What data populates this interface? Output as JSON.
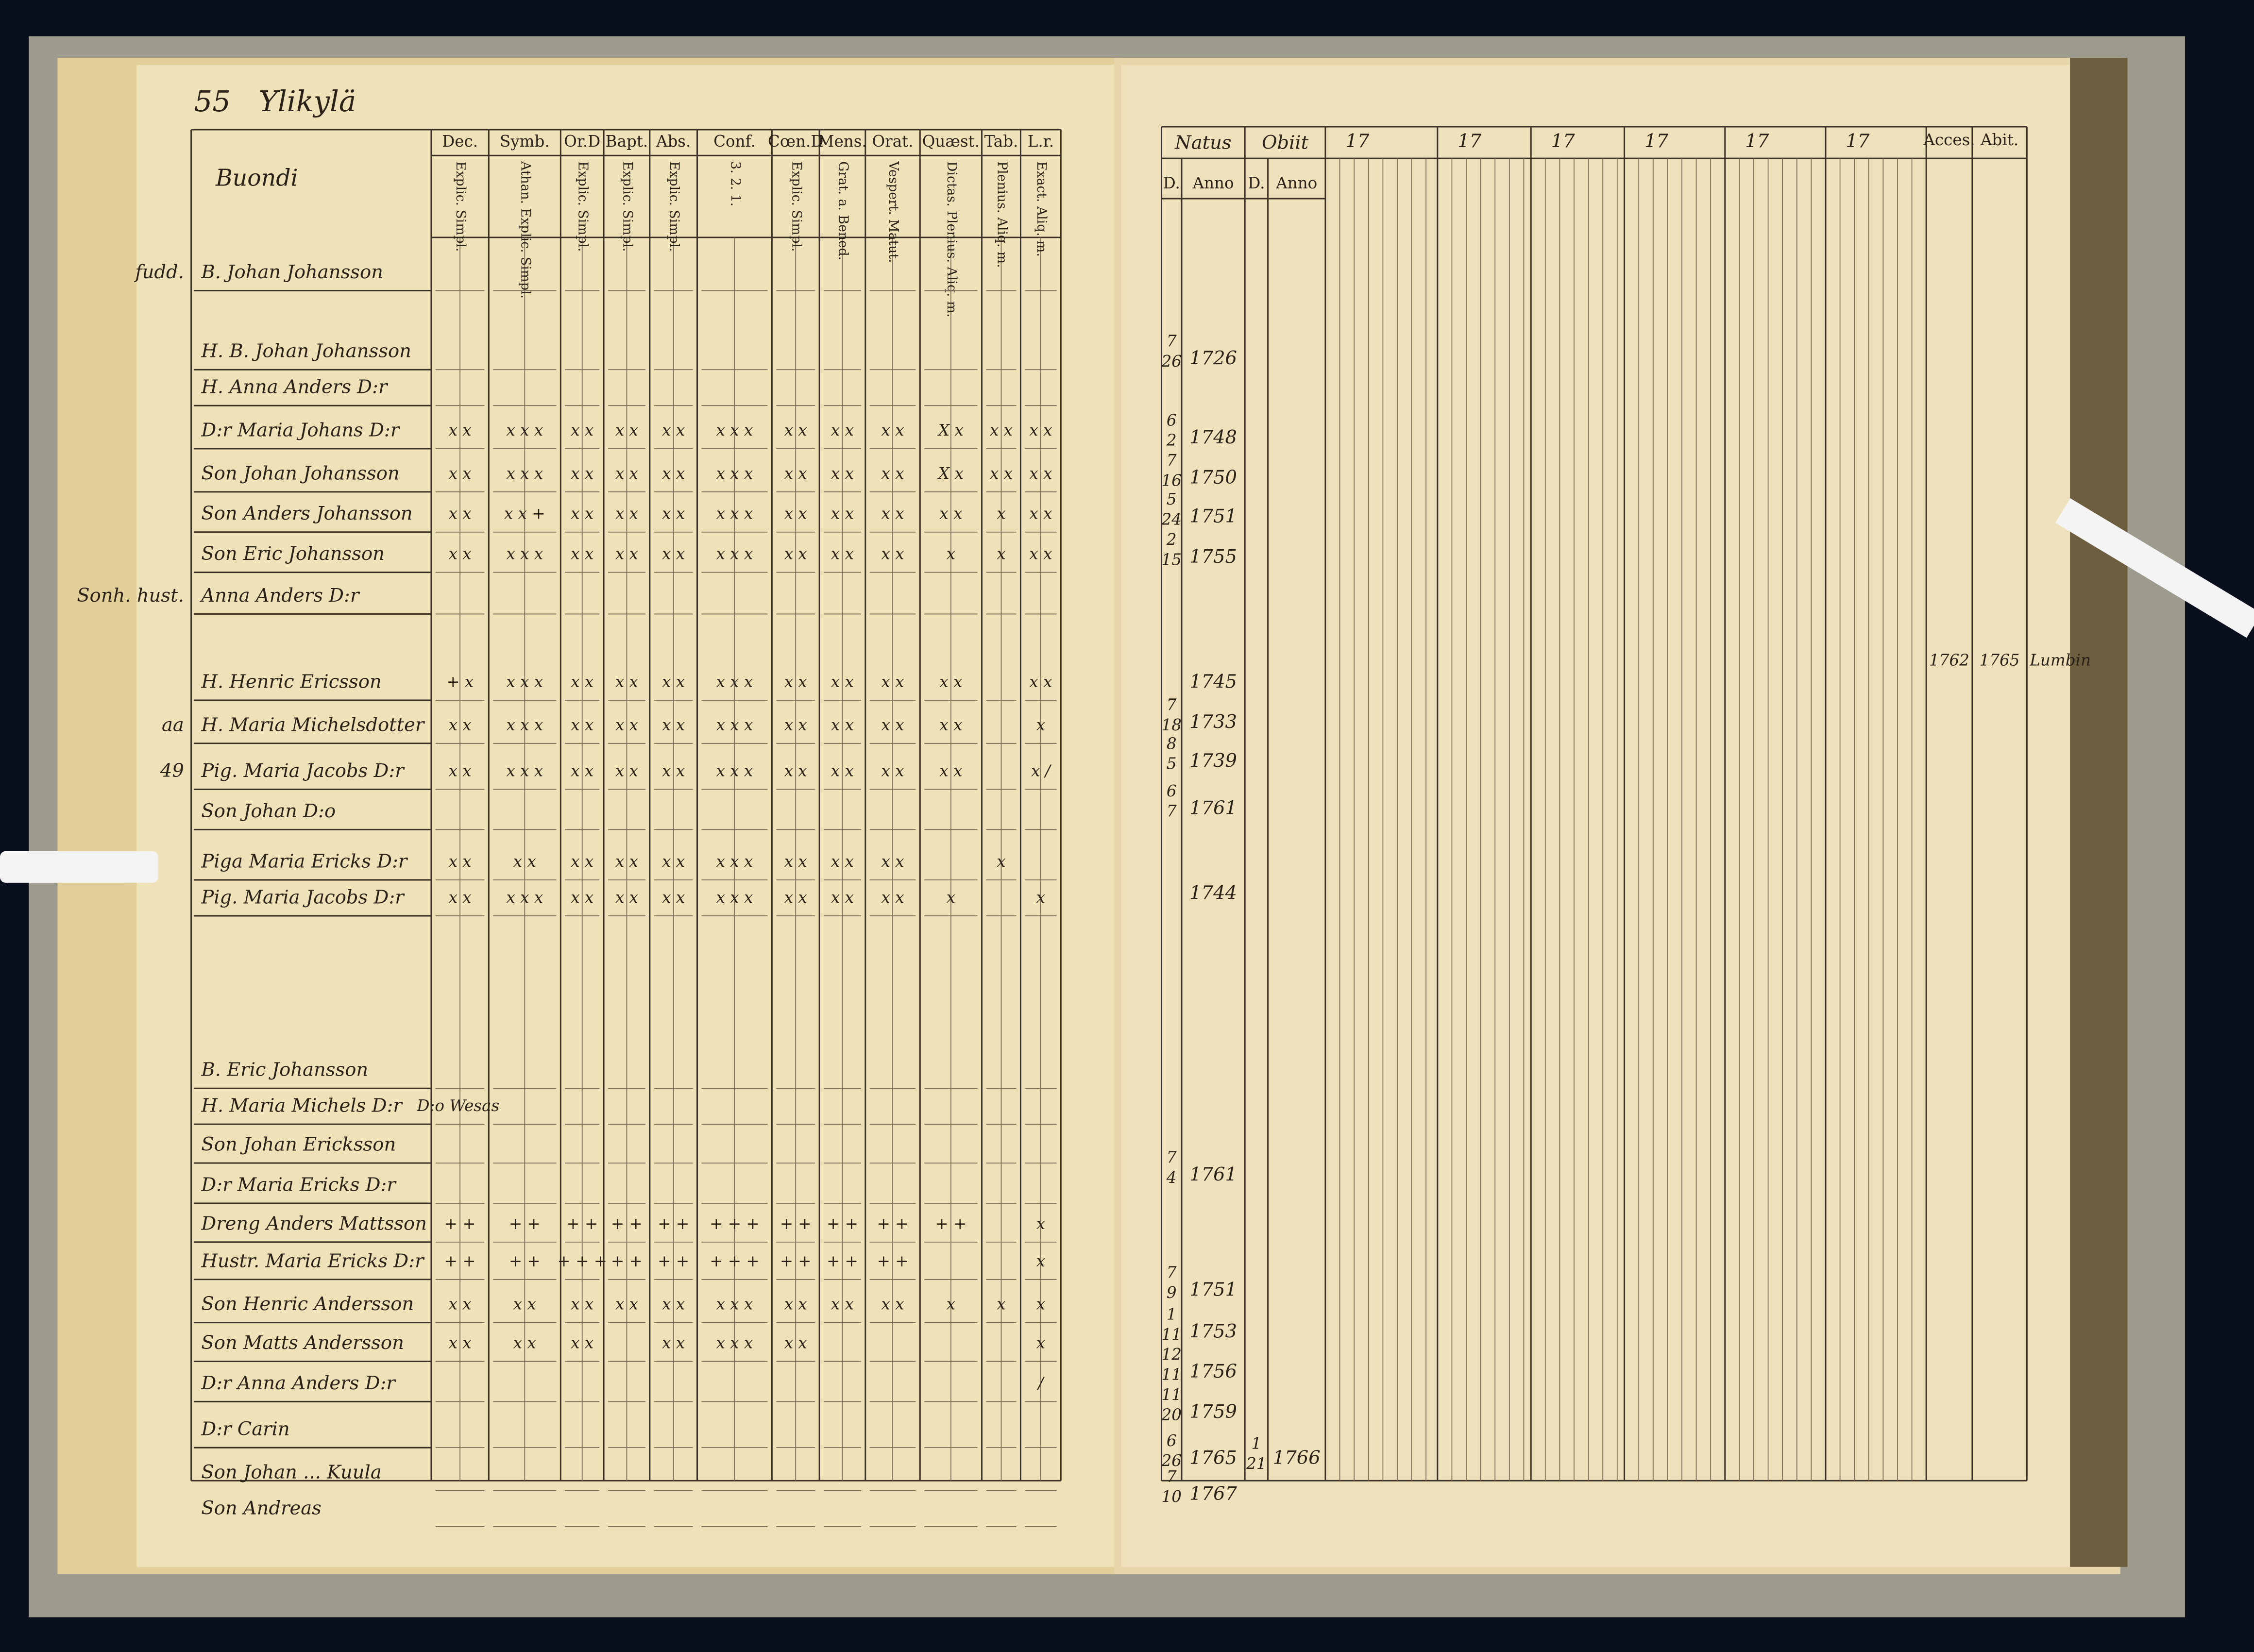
{
  "left_page": {
    "page_number": "55",
    "village": "Ylikylä",
    "section": "Buondi",
    "columns": [
      {
        "header": "Dec.",
        "sub": "Explic. Simpl."
      },
      {
        "header": "Symb.",
        "sub": "Athan. Explic. Simpl."
      },
      {
        "header": "Or.D",
        "sub": "Explic. Simpl."
      },
      {
        "header": "Bapt.",
        "sub": "Explic. Simpl."
      },
      {
        "header": "Abs.",
        "sub": "Explic. Simpl."
      },
      {
        "header": "Conf.",
        "sub": "3. 2. 1."
      },
      {
        "header": "Cœn.D",
        "sub": "Explic. Simpl."
      },
      {
        "header": "Mens.",
        "sub": "Grat. a. Bened."
      },
      {
        "header": "Orat.",
        "sub": "Vespert. Matut."
      },
      {
        "header": "Quæst.",
        "sub": "Dictas. Plenius. Aliq. m."
      },
      {
        "header": "Tab.",
        "sub": "Plenius. Aliq. m."
      },
      {
        "header": "L.r.",
        "sub": "Exact. Aliq. m."
      }
    ],
    "rows": [
      {
        "prefix": "fudd.",
        "name": "B. Johan Johansson"
      },
      {
        "name": "H. B. Johan Johansson"
      },
      {
        "name": "H. Anna Anders D:r"
      },
      {
        "name": "D:r Maria Johans D:r",
        "marks": [
          "x x",
          "x x x",
          "x x",
          "x x",
          "x x",
          "x x x",
          "x x",
          "x x",
          "x x",
          "X x",
          "x x",
          "x x"
        ]
      },
      {
        "name": "Son Johan Johansson",
        "marks": [
          "x x",
          "x x x",
          "x x",
          "x x",
          "x x",
          "x x x",
          "x x",
          "x x",
          "x x",
          "X x",
          "x x",
          "x x"
        ]
      },
      {
        "name": "Son Anders Johansson",
        "marks": [
          "x x",
          "x x +",
          "x x",
          "x x",
          "x x",
          "x x x",
          "x x",
          "x x",
          "x x",
          "x x",
          "x",
          "x x"
        ]
      },
      {
        "name": "Son Eric Johansson",
        "marks": [
          "x x",
          "x x x",
          "x x",
          "x x",
          "x x",
          "x x x",
          "x x",
          "x x",
          "x x",
          "x",
          "x",
          "x x"
        ]
      },
      {
        "prefix": "Sonh. hust.",
        "name": "Anna Anders D:r"
      },
      {
        "name": "H. Henric Ericsson",
        "marks": [
          "+ x",
          "x x x",
          "x x",
          "x x",
          "x x",
          "x x x",
          "x x",
          "x x",
          "x x",
          "x x",
          null,
          "x x"
        ]
      },
      {
        "prefix": "aa",
        "name": "H. Maria Michelsdotter",
        "marks": [
          "x x",
          "x x x",
          "x x",
          "x x",
          "x x",
          "x x x",
          "x x",
          "x x",
          "x x",
          "x x",
          null,
          "x"
        ]
      },
      {
        "prefix": "49",
        "name": "Pig. Maria Jacobs D:r",
        "marks": [
          "x x",
          "x x x",
          "x x",
          "x x",
          "x x",
          "x x x",
          "x x",
          "x x",
          "x x",
          "x x",
          null,
          "x /"
        ]
      },
      {
        "name": "Son Johan D:o"
      },
      {
        "name": "Piga Maria Ericks D:r",
        "marks": [
          "x x",
          "x x",
          "x x",
          "x x",
          "x x",
          "x x x",
          "x x",
          "x x",
          "x x",
          null,
          "x",
          null
        ]
      },
      {
        "name": "Pig. Maria Jacobs D:r",
        "marks": [
          "x x",
          "x x x",
          "x x",
          "x x",
          "x x",
          "x x x",
          "x x",
          "x x",
          "x x",
          "x",
          null,
          "x"
        ]
      },
      {
        "name": "B. Eric Johansson"
      },
      {
        "name": "H. Maria Michels D:r",
        "note": "D:o Wesas"
      },
      {
        "name": "Son Johan Ericksson"
      },
      {
        "name": "D:r Maria Ericks D:r"
      },
      {
        "name": "Dreng Anders Mattsson",
        "marks": [
          "+ +",
          "+ +",
          "+ +",
          "+ +",
          "+ +",
          "+ + +",
          "+ +",
          "+ +",
          "+ +",
          "+ +",
          null,
          "x"
        ]
      },
      {
        "name": "Hustr. Maria Ericks D:r",
        "marks": [
          "+ +",
          "+ +",
          "+ + +",
          "+ +",
          "+ +",
          "+ + +",
          "+ +",
          "+ +",
          "+ +",
          null,
          null,
          "x"
        ]
      },
      {
        "name": "Son Henric Andersson",
        "marks": [
          "x x",
          "x x",
          "x x",
          "x x",
          "x x",
          "x x x",
          "x x",
          "x x",
          "x x",
          "x",
          "x",
          "x"
        ]
      },
      {
        "name": "Son Matts Andersson",
        "marks": [
          "x x",
          "x x",
          "x x",
          null,
          "x x",
          "x x x",
          "x x",
          null,
          null,
          null,
          null,
          "x"
        ]
      },
      {
        "name": "D:r Anna Anders D:r",
        "marks": [
          null,
          null,
          null,
          null,
          null,
          null,
          null,
          null,
          null,
          null,
          null,
          "/"
        ]
      },
      {
        "name": "D:r Carin"
      },
      {
        "name": "Son Johan ... Kuula"
      },
      {
        "name": "Son Andreas"
      }
    ]
  },
  "right_page": {
    "headers": {
      "born": "Natus",
      "died": "Obiit",
      "day": "D.",
      "year": "Anno",
      "accession": "Acces.",
      "departure": "Abit."
    },
    "year_columns": [
      "17",
      "17",
      "17",
      "17",
      "17",
      "17"
    ],
    "entries": [
      {
        "day": "26",
        "month": "7",
        "year": "1726"
      },
      {
        "day": "2",
        "month": "6",
        "year": "1748"
      },
      {
        "day": "16",
        "month": "7",
        "year": "1750"
      },
      {
        "day": "24",
        "month": "5",
        "year": "1751"
      },
      {
        "day": "15",
        "month": "2",
        "year": "1755"
      },
      {
        "year": "1745",
        "accession": "1762",
        "departure": "1765",
        "departure_place": "Lumbin"
      },
      {
        "day": "18",
        "month": "7",
        "year": "1733"
      },
      {
        "day": "5",
        "month": "8",
        "year": "1739"
      },
      {
        "day": "7",
        "month": "6",
        "year": "1761"
      },
      {
        "year": "1744"
      },
      {
        "day": "4",
        "month": "7",
        "year": "1761"
      },
      {
        "day": "9",
        "month": "7",
        "year": "1751"
      },
      {
        "day": "11",
        "month": "1",
        "year": "1753"
      },
      {
        "day": "11",
        "month": "12",
        "year": "1756"
      },
      {
        "day": "20",
        "month": "11",
        "year": "1759"
      },
      {
        "day": "26",
        "month": "6",
        "year": "1765",
        "death_day": "21",
        "death_month": "1",
        "death_year": "1766"
      },
      {
        "day": "10",
        "month": "7",
        "year": "1767"
      }
    ]
  }
}
